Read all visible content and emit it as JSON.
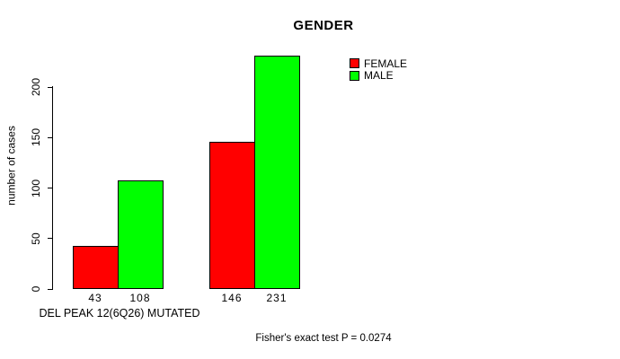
{
  "page": {
    "background_color": "#ffffff",
    "text_color": "#000000"
  },
  "chart_data": {
    "type": "bar",
    "title": "GENDER",
    "ylabel": "number of cases",
    "xlabel": "DEL PEAK 12(6Q26) MUTATED",
    "annotation": "Fisher's exact test P = 0.0274",
    "groups": 2,
    "series": [
      {
        "name": "FEMALE",
        "color": "#ff0000",
        "values": [
          43,
          146
        ]
      },
      {
        "name": "MALE",
        "color": "#00ff00",
        "values": [
          108,
          231
        ]
      }
    ],
    "value_labels": [
      [
        43,
        108
      ],
      [
        146,
        231
      ]
    ],
    "yticks": [
      0,
      50,
      100,
      150,
      200
    ],
    "ylim": [
      0,
      231
    ],
    "grid": false,
    "legend_position": "top-right",
    "legend_entries": [
      "FEMALE",
      "MALE"
    ],
    "bar_border_color": "#000000"
  }
}
